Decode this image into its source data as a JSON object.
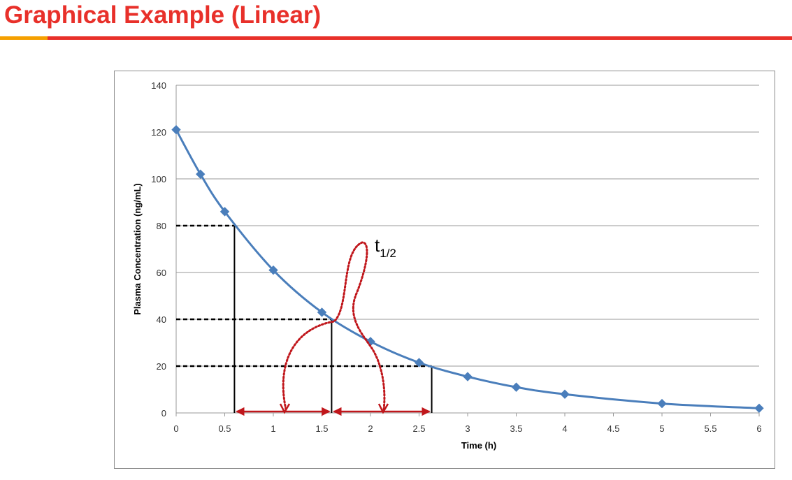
{
  "slide": {
    "title": "Graphical Example (Linear)"
  },
  "colors": {
    "title": "#e8302a",
    "accent": "#f5a000",
    "series": "#4a7ebb",
    "arrow": "#c0161b",
    "guide": "#000000"
  },
  "chart_data": {
    "type": "line",
    "title": "",
    "xlabel": "Time (h)",
    "ylabel": "Plasma Concentration (ng/mL)",
    "xlim": [
      0,
      6
    ],
    "ylim": [
      0,
      140
    ],
    "x_ticks": [
      0,
      0.5,
      1,
      1.5,
      2,
      2.5,
      3,
      3.5,
      4,
      4.5,
      5,
      5.5,
      6
    ],
    "y_ticks": [
      0,
      20,
      40,
      60,
      80,
      100,
      120,
      140
    ],
    "grid": "horizontal",
    "legend": "none",
    "series": [
      {
        "marker": "diamond",
        "smooth": true,
        "points": [
          {
            "x": 0,
            "y": 121
          },
          {
            "x": 0.25,
            "y": 102
          },
          {
            "x": 0.5,
            "y": 86
          },
          {
            "x": 1,
            "y": 61
          },
          {
            "x": 1.5,
            "y": 43
          },
          {
            "x": 2,
            "y": 30.5
          },
          {
            "x": 2.5,
            "y": 21.5
          },
          {
            "x": 3,
            "y": 15.5
          },
          {
            "x": 3.5,
            "y": 11
          },
          {
            "x": 4,
            "y": 8
          },
          {
            "x": 5,
            "y": 4
          },
          {
            "x": 6,
            "y": 2
          }
        ]
      }
    ],
    "half_life_guides": [
      {
        "concentration": 80,
        "time": 0.6
      },
      {
        "concentration": 40,
        "time": 1.6
      },
      {
        "concentration": 20,
        "time": 2.63
      }
    ],
    "annotation": {
      "label_main": "t",
      "label_sub": "1/2"
    }
  }
}
